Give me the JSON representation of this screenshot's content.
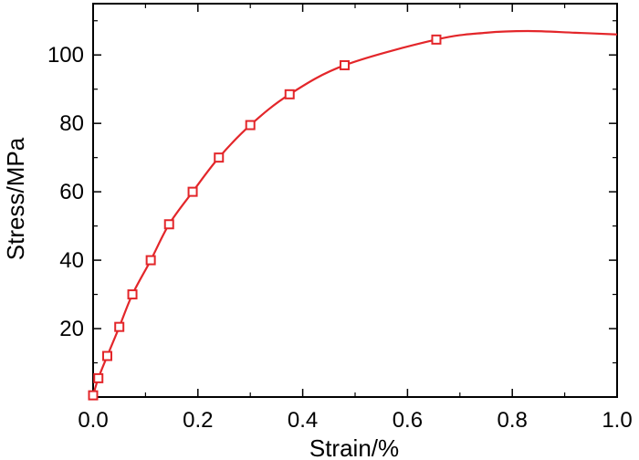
{
  "chart_data": {
    "type": "line",
    "xlabel": "Strain/%",
    "ylabel": "Stress/MPa",
    "xlim": [
      0,
      1.0
    ],
    "ylim": [
      0,
      115
    ],
    "x_ticks": [
      "0.0",
      "0.2",
      "0.4",
      "0.6",
      "0.8",
      "1.0"
    ],
    "y_ticks": [
      "20",
      "40",
      "60",
      "80",
      "100"
    ],
    "grid": false,
    "series": [
      {
        "color": "#e3262a",
        "marker": "square-open",
        "markers": [
          {
            "x": 0.0,
            "y": 0.5
          },
          {
            "x": 0.01,
            "y": 5.5
          },
          {
            "x": 0.027,
            "y": 12
          },
          {
            "x": 0.05,
            "y": 20.5
          },
          {
            "x": 0.075,
            "y": 30
          },
          {
            "x": 0.11,
            "y": 40
          },
          {
            "x": 0.145,
            "y": 50.5
          },
          {
            "x": 0.19,
            "y": 60
          },
          {
            "x": 0.24,
            "y": 70
          },
          {
            "x": 0.3,
            "y": 79.5
          },
          {
            "x": 0.375,
            "y": 88.5
          },
          {
            "x": 0.48,
            "y": 97
          },
          {
            "x": 0.655,
            "y": 104.5
          }
        ],
        "curve": [
          {
            "x": 0.0,
            "y": 0.5
          },
          {
            "x": 0.01,
            "y": 5.5
          },
          {
            "x": 0.027,
            "y": 12
          },
          {
            "x": 0.05,
            "y": 20.5
          },
          {
            "x": 0.075,
            "y": 30
          },
          {
            "x": 0.11,
            "y": 40
          },
          {
            "x": 0.145,
            "y": 50.5
          },
          {
            "x": 0.19,
            "y": 60
          },
          {
            "x": 0.24,
            "y": 70
          },
          {
            "x": 0.3,
            "y": 79.5
          },
          {
            "x": 0.375,
            "y": 88.5
          },
          {
            "x": 0.48,
            "y": 97
          },
          {
            "x": 0.655,
            "y": 104.5
          },
          {
            "x": 0.75,
            "y": 106.5
          },
          {
            "x": 0.83,
            "y": 107
          },
          {
            "x": 0.92,
            "y": 106.5
          },
          {
            "x": 1.0,
            "y": 106
          }
        ]
      }
    ]
  }
}
